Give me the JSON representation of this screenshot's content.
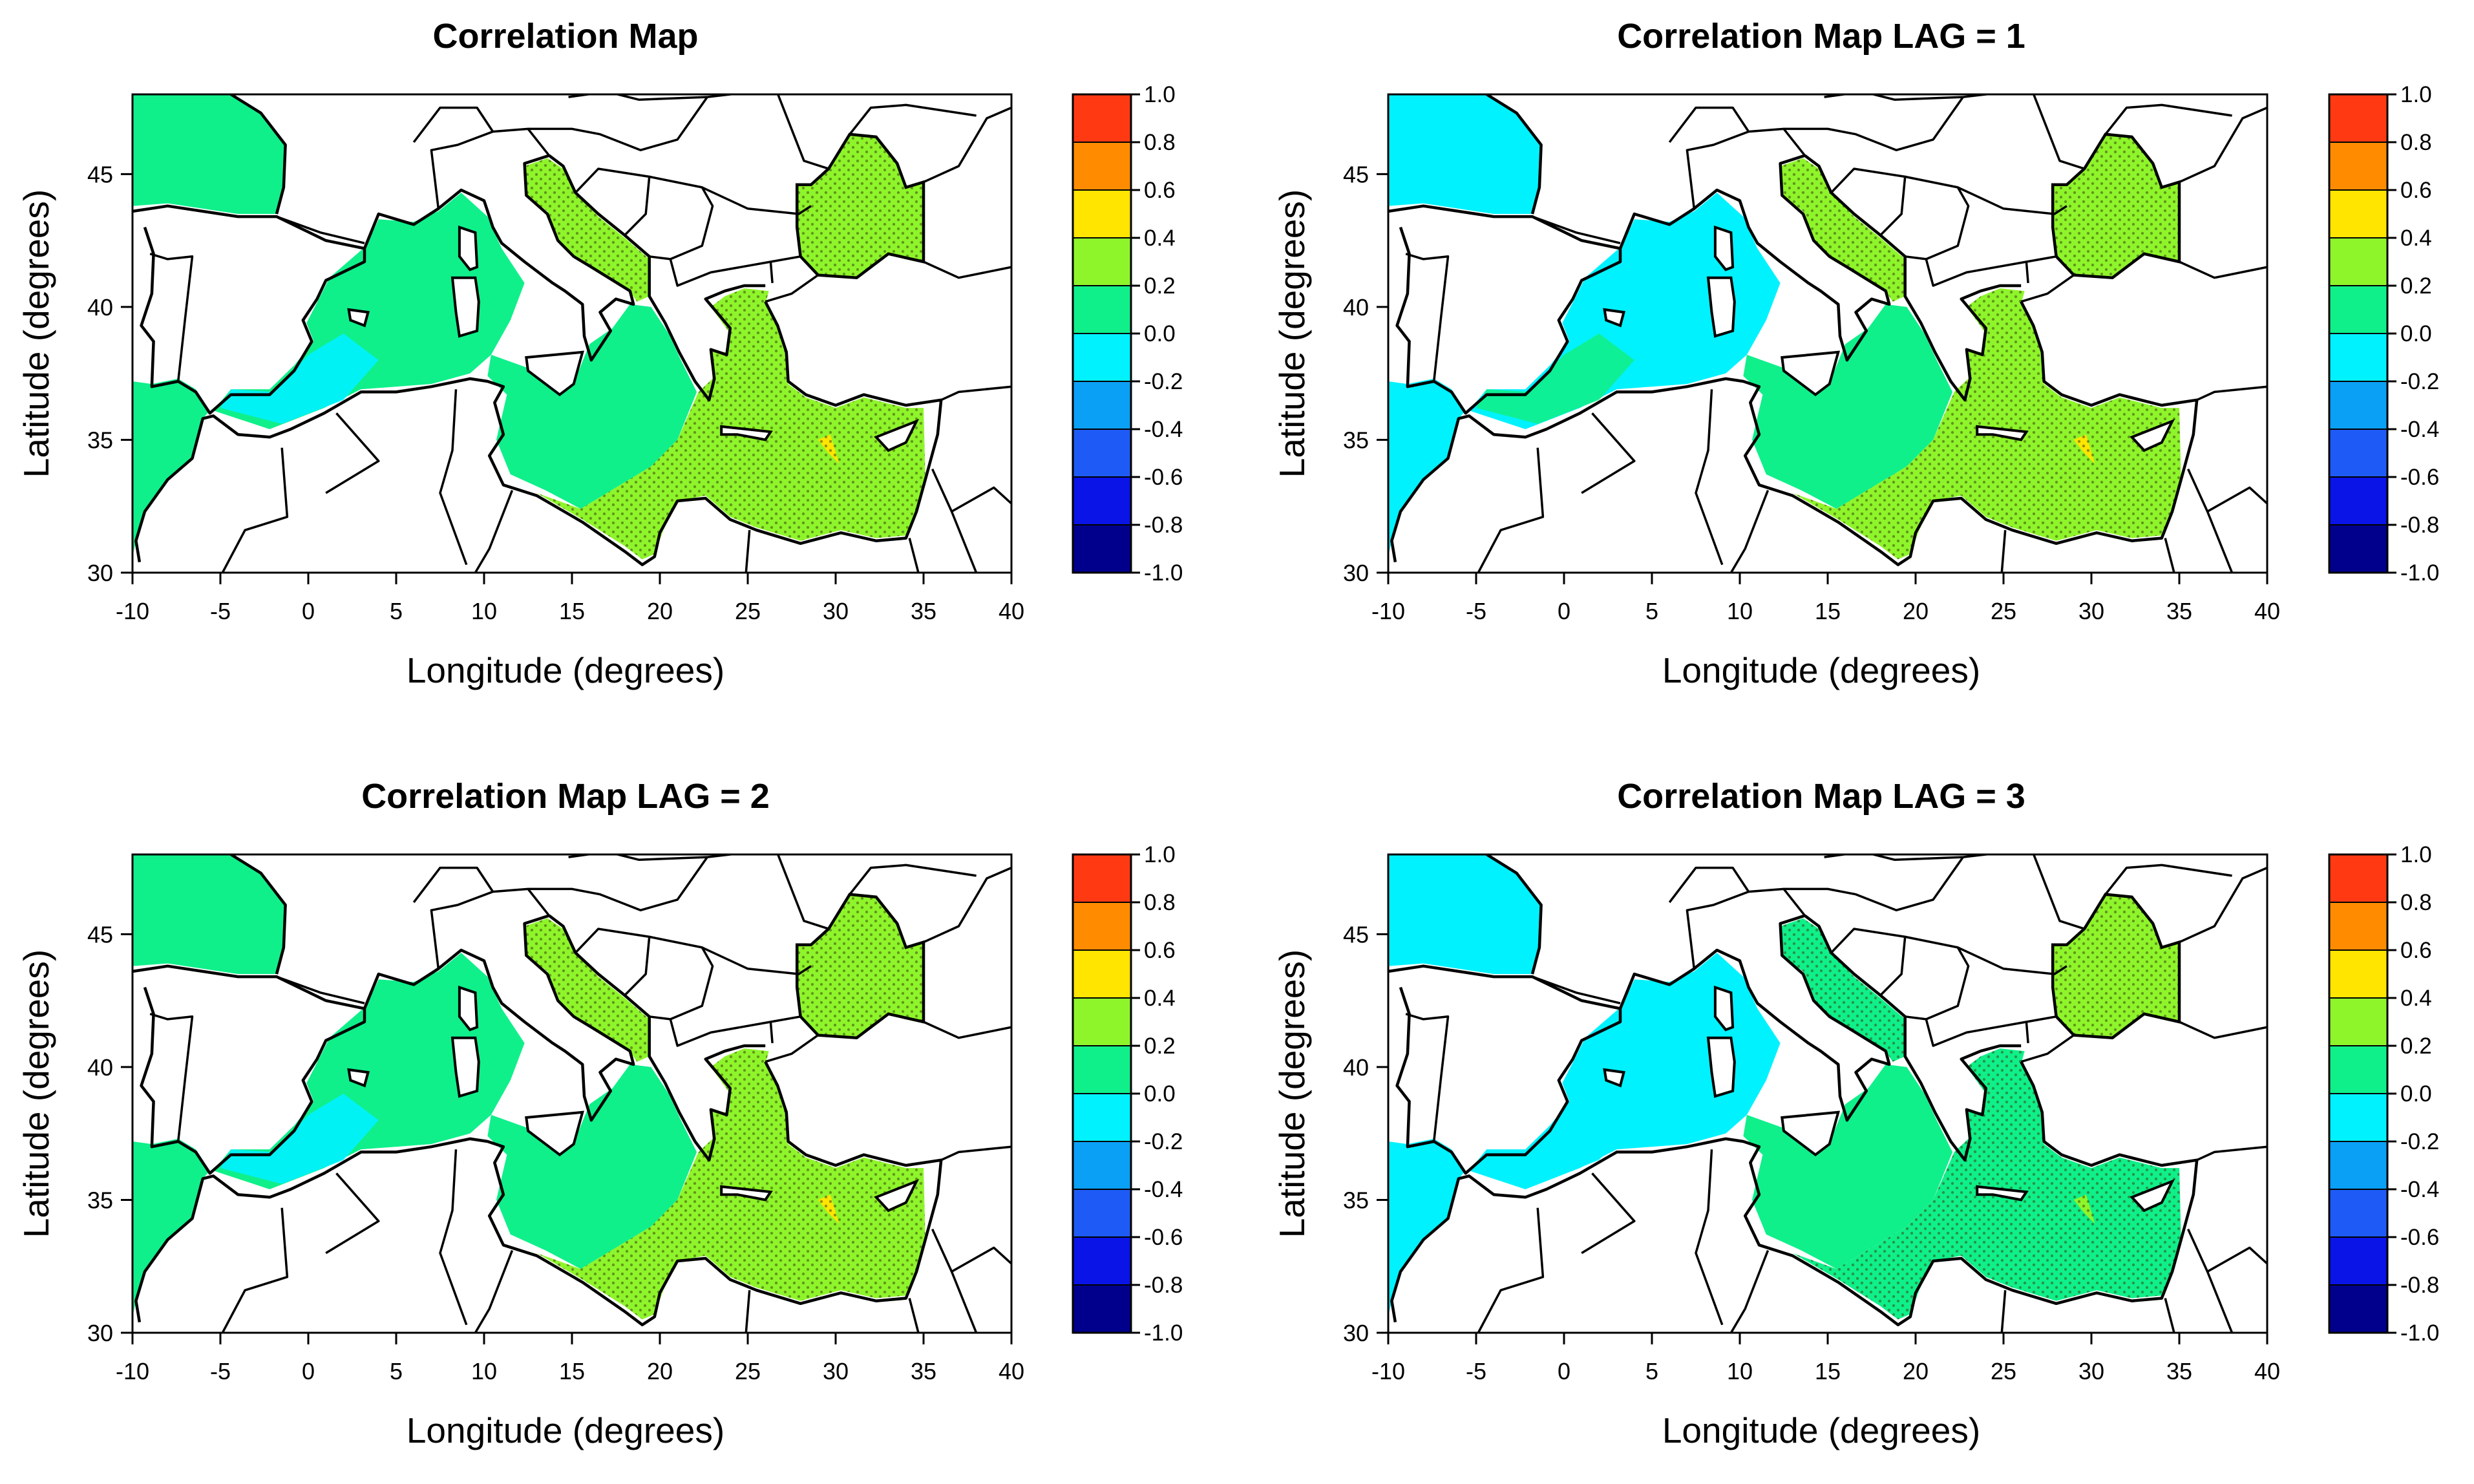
{
  "figure": {
    "x_axis_label": "Longitude (degrees)",
    "y_axis_label": "Latitude (degrees)",
    "x_ticks": [
      "-10",
      "-5",
      "0",
      "5",
      "10",
      "15",
      "20",
      "25",
      "30",
      "35",
      "40"
    ],
    "y_ticks": [
      "30",
      "35",
      "40",
      "45"
    ],
    "colorbar_ticks": [
      "1.0",
      "0.8",
      "0.6",
      "0.4",
      "0.2",
      "0.0",
      "-0.2",
      "-0.4",
      "-0.6",
      "-0.8",
      "-1.0"
    ],
    "colorbar_colors": [
      "#ff3a12",
      "#ff8c00",
      "#ffe500",
      "#8ff52b",
      "#0ff08a",
      "#00f2ff",
      "#0aa0f5",
      "#1e5af5",
      "#0a14e6",
      "#00008c"
    ]
  },
  "panels": [
    {
      "title": "Correlation Map",
      "west_sea_color": "#0ff08a",
      "west_patch_color": "#00f2ff",
      "central_color": "#0ff08a",
      "east_color": "#8ff52b",
      "black_sea_color": "#8ff52b",
      "hotspot_color": "#ffe500"
    },
    {
      "title": "Correlation Map LAG = 1",
      "west_sea_color": "#00f2ff",
      "west_patch_color": "#0ff08a",
      "central_color": "#0ff08a",
      "east_color": "#8ff52b",
      "black_sea_color": "#8ff52b",
      "hotspot_color": "#ffe500"
    },
    {
      "title": "Correlation Map LAG = 2",
      "west_sea_color": "#0ff08a",
      "west_patch_color": "#00f2ff",
      "central_color": "#0ff08a",
      "east_color": "#8ff52b",
      "black_sea_color": "#8ff52b",
      "hotspot_color": "#ffe500"
    },
    {
      "title": "Correlation Map LAG = 3",
      "west_sea_color": "#00f2ff",
      "west_patch_color": "#00f2ff",
      "central_color": "#0ff08a",
      "east_color": "#0ff08a",
      "black_sea_color": "#8ff52b",
      "hotspot_color": "#8ff52b"
    }
  ]
}
